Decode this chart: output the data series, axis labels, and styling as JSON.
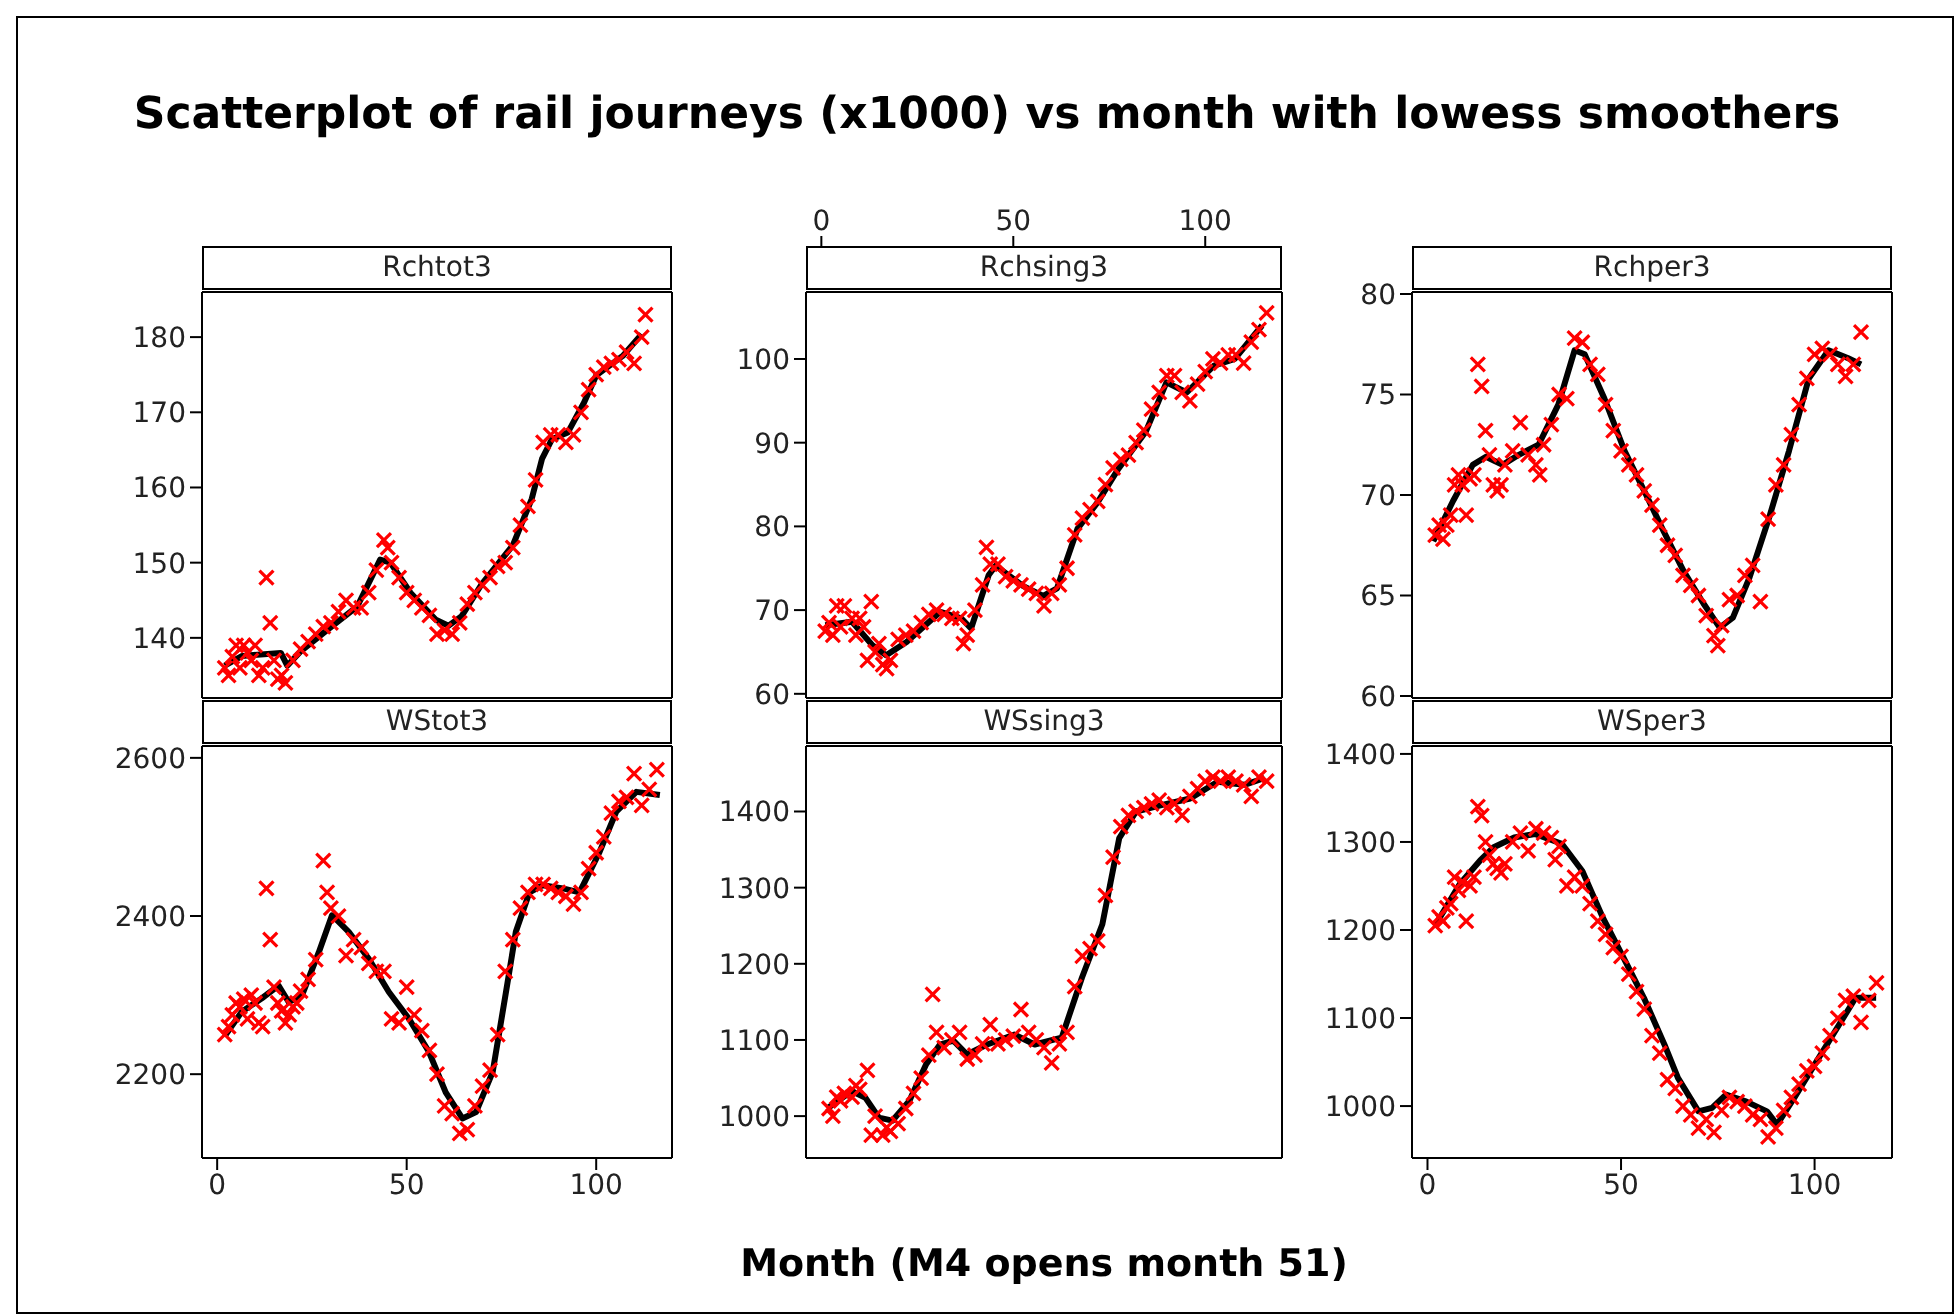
{
  "chart_data": [
    {
      "type": "scatter",
      "title": "Rchtot3",
      "annotations": [
        "Scatterplot of rail journeys (x1000) vs month with lowess smoothers"
      ],
      "xlim": [
        -4,
        120
      ],
      "ylim": [
        132,
        186
      ],
      "yticks": [
        140,
        150,
        160,
        170,
        180
      ],
      "tick_labels": "y",
      "legend": false,
      "grid": false,
      "series": [
        {
          "type": "scatter",
          "color": "#ff0000",
          "marker": "cross",
          "x": [
            2,
            3,
            4,
            5,
            6,
            7,
            8,
            9,
            10,
            11,
            12,
            13,
            14,
            15,
            16,
            17,
            18,
            20,
            22,
            24,
            26,
            28,
            30,
            32,
            34,
            36,
            38,
            40,
            42,
            44,
            45,
            46,
            48,
            50,
            52,
            54,
            56,
            58,
            60,
            62,
            64,
            66,
            68,
            70,
            72,
            74,
            76,
            78,
            80,
            82,
            84,
            86,
            88,
            90,
            92,
            94,
            96,
            98,
            100,
            102,
            104,
            106,
            108,
            110,
            112,
            113
          ],
          "values": [
            136,
            135,
            137.5,
            139,
            136,
            139,
            138,
            137,
            139,
            135,
            136,
            148,
            142,
            137,
            134.5,
            135,
            134,
            137,
            138.5,
            139.5,
            140.5,
            141.5,
            142,
            143.5,
            145,
            144,
            144,
            146,
            149,
            153,
            152,
            150,
            148,
            146,
            145,
            144,
            143,
            140.5,
            141,
            140.5,
            142,
            144.5,
            146,
            147,
            148,
            149.5,
            150,
            152,
            155,
            157.5,
            161,
            166,
            167,
            167,
            166,
            167,
            170,
            173,
            175,
            176,
            176.5,
            177,
            178,
            176.5,
            180,
            183
          ]
        },
        {
          "type": "line",
          "color": "#000000",
          "x": [
            2,
            6.6,
            16.8,
            18.5,
            22,
            30.4,
            37,
            43,
            45.7,
            51,
            57.7,
            61,
            64.5,
            69.6,
            78,
            83,
            85.7,
            88.3,
            92.5,
            96.8,
            100,
            107,
            112
          ],
          "values": [
            136.3,
            137.6,
            138,
            136.3,
            138.2,
            141.6,
            144.2,
            150.4,
            150,
            146,
            142.4,
            141.6,
            142.9,
            147,
            152.3,
            158.5,
            163.8,
            166.4,
            167.3,
            171.3,
            174.9,
            177.5,
            180.4
          ]
        }
      ]
    },
    {
      "type": "scatter",
      "title": "Rchsing3",
      "xlim": [
        -4,
        120
      ],
      "x2lim": [
        -4,
        120
      ],
      "x2ticks": [
        0,
        50,
        100
      ],
      "ylim": [
        59.5,
        108
      ],
      "yticks": [
        60,
        70,
        80,
        90,
        100
      ],
      "legend": false,
      "grid": false,
      "series": [
        {
          "type": "scatter",
          "color": "#ff0000",
          "marker": "cross",
          "x": [
            1,
            2,
            3,
            4,
            5,
            6,
            8,
            9,
            10,
            11,
            12,
            13,
            14,
            15,
            16,
            17,
            18,
            20,
            22,
            24,
            26,
            28,
            30,
            32,
            34,
            36,
            37,
            38,
            40,
            42,
            43,
            44,
            46,
            48,
            50,
            52,
            54,
            56,
            58,
            60,
            62,
            64,
            66,
            68,
            70,
            72,
            74,
            76,
            78,
            80,
            82,
            84,
            86,
            88,
            90,
            92,
            94,
            96,
            98,
            100,
            102,
            104,
            106,
            108,
            110,
            112,
            114,
            116
          ],
          "values": [
            67.5,
            68.5,
            67,
            70.5,
            68,
            70.5,
            69,
            67,
            69,
            68,
            64,
            71,
            65,
            66,
            63.5,
            63,
            64,
            66.5,
            67,
            67.5,
            68.5,
            69.5,
            70,
            69.5,
            69,
            69,
            66,
            67,
            70,
            73,
            77.5,
            75.5,
            75.5,
            74,
            73.5,
            73,
            72.5,
            72,
            70.5,
            72,
            73,
            75,
            79,
            81,
            82,
            83,
            85,
            87,
            88,
            88.5,
            90,
            91.5,
            94,
            96,
            98,
            98,
            96,
            95,
            97,
            98.5,
            100,
            99.5,
            100.5,
            100.5,
            99.5,
            102,
            103.5,
            105.5
          ]
        },
        {
          "type": "line",
          "color": "#000000",
          "x": [
            1,
            8,
            13.3,
            16.9,
            22.2,
            31,
            36.5,
            39,
            43.6,
            45.4,
            52.5,
            57.8,
            61.4,
            66.7,
            72,
            77.4,
            84.5,
            89.9,
            95.2,
            102.3,
            107.7,
            114.8
          ],
          "values": [
            68.2,
            68.6,
            65.8,
            64.6,
            66.2,
            69.8,
            69,
            67.8,
            74.2,
            75.3,
            72.9,
            71.7,
            72.6,
            79.7,
            82.9,
            86.9,
            91.3,
            97.2,
            96,
            99.2,
            100,
            104
          ]
        }
      ]
    },
    {
      "type": "scatter",
      "title": "Rchper3",
      "xlim": [
        -4,
        120
      ],
      "ylim": [
        59.9,
        80.1
      ],
      "yticks": [
        60,
        65,
        70,
        75,
        80
      ],
      "tick_labels": "y",
      "legend": false,
      "grid": false,
      "series": [
        {
          "type": "scatter",
          "color": "#ff0000",
          "marker": "cross",
          "x": [
            2,
            3,
            4,
            5,
            6,
            7,
            8,
            9,
            10,
            11,
            12,
            13,
            14,
            15,
            16,
            17,
            18,
            19,
            20,
            22,
            24,
            26,
            28,
            29,
            30,
            32,
            34,
            36,
            38,
            40,
            42,
            44,
            46,
            48,
            50,
            52,
            54,
            56,
            58,
            60,
            62,
            64,
            66,
            68,
            70,
            72,
            74,
            75,
            76,
            78,
            80,
            82,
            84,
            86,
            88,
            90,
            92,
            94,
            96,
            98,
            100,
            102,
            104,
            106,
            108,
            110,
            112
          ],
          "values": [
            68,
            68.5,
            67.8,
            68.5,
            69,
            70.5,
            71,
            70.5,
            69,
            70.8,
            71,
            76.5,
            75.4,
            73.2,
            72,
            70.5,
            70.2,
            70.5,
            71.5,
            72.2,
            73.6,
            72,
            71.5,
            71,
            72.5,
            73.5,
            75,
            74.8,
            77.8,
            77.6,
            76.5,
            76,
            74.5,
            73.2,
            72.2,
            71.5,
            71,
            70.2,
            69.5,
            68.5,
            67.5,
            67,
            66,
            65.5,
            65,
            64,
            63,
            62.5,
            63.5,
            64.8,
            65,
            66,
            66.5,
            64.7,
            68.8,
            70.5,
            71.5,
            73,
            74.5,
            75.8,
            77,
            77.3,
            77,
            76.5,
            75.9,
            76.5,
            78.1
          ]
        },
        {
          "type": "line",
          "color": "#000000",
          "x": [
            1.5,
            6.6,
            11.7,
            15.1,
            19.4,
            23.6,
            28.7,
            33.8,
            38,
            40.6,
            45.7,
            50.9,
            56,
            61,
            66.2,
            71.3,
            75.5,
            78.9,
            83.2,
            88.3,
            93.4,
            98.5,
            103.6,
            108.7,
            112
          ],
          "values": [
            67.7,
            69.7,
            71.5,
            71.9,
            71.5,
            72,
            72.5,
            74.5,
            77.2,
            77,
            74.8,
            72.2,
            70.2,
            68.2,
            66.2,
            64.6,
            63.4,
            63.9,
            65.9,
            68.9,
            72.2,
            75.8,
            77.2,
            76.8,
            76.5
          ]
        }
      ]
    },
    {
      "type": "scatter",
      "title": "WStot3",
      "xlim": [
        -4,
        120
      ],
      "xticks": [
        0,
        50,
        100
      ],
      "ylim": [
        2094,
        2615
      ],
      "yticks": [
        2200,
        2400,
        2600
      ],
      "legend": false,
      "grid": false,
      "series": [
        {
          "type": "scatter",
          "color": "#ff0000",
          "marker": "cross",
          "x": [
            2,
            3,
            4,
            5,
            6,
            7,
            8,
            9,
            10,
            11,
            12,
            13,
            14,
            15,
            16,
            17,
            18,
            19,
            20,
            21,
            22,
            24,
            26,
            28,
            29,
            30,
            32,
            34,
            36,
            38,
            40,
            42,
            44,
            46,
            48,
            50,
            52,
            54,
            56,
            58,
            60,
            62,
            64,
            66,
            68,
            70,
            72,
            74,
            76,
            78,
            80,
            82,
            84,
            86,
            88,
            90,
            92,
            94,
            96,
            98,
            100,
            102,
            104,
            106,
            108,
            110,
            112,
            114,
            116
          ],
          "values": [
            2250,
            2260,
            2275,
            2290,
            2285,
            2295,
            2270,
            2300,
            2290,
            2265,
            2260,
            2435,
            2370,
            2310,
            2290,
            2280,
            2265,
            2275,
            2285,
            2290,
            2305,
            2320,
            2345,
            2470,
            2430,
            2410,
            2400,
            2350,
            2370,
            2360,
            2340,
            2330,
            2330,
            2270,
            2265,
            2310,
            2275,
            2255,
            2230,
            2200,
            2160,
            2150,
            2125,
            2130,
            2160,
            2185,
            2205,
            2250,
            2330,
            2370,
            2410,
            2430,
            2440,
            2440,
            2435,
            2430,
            2425,
            2415,
            2430,
            2460,
            2480,
            2500,
            2530,
            2545,
            2550,
            2580,
            2540,
            2560,
            2585
          ]
        },
        {
          "type": "line",
          "color": "#000000",
          "x": [
            2.1,
            6.5,
            11.8,
            16.2,
            18.9,
            22.4,
            26.8,
            30.3,
            34.7,
            40,
            45.3,
            50.6,
            55.9,
            60.3,
            64.7,
            68.3,
            72.7,
            76.2,
            78.8,
            82.4,
            85.9,
            91.2,
            95.6,
            100.9,
            105.3,
            110.6,
            116.8
          ],
          "values": [
            2249,
            2279,
            2296,
            2312,
            2291,
            2300,
            2354,
            2401,
            2380,
            2346,
            2304,
            2270,
            2228,
            2177,
            2144,
            2152,
            2203,
            2304,
            2380,
            2430,
            2439,
            2435,
            2430,
            2481,
            2532,
            2557,
            2553
          ]
        }
      ]
    },
    {
      "type": "scatter",
      "title": "WSsing3",
      "xlabel": "Month (M4 opens month 51)",
      "xlim": [
        -4,
        120
      ],
      "ylim": [
        945,
        1486
      ],
      "yticks": [
        1000,
        1100,
        1200,
        1300,
        1400
      ],
      "tick_labels": "y",
      "legend": false,
      "grid": false,
      "series": [
        {
          "type": "scatter",
          "color": "#ff0000",
          "marker": "cross",
          "x": [
            2,
            3,
            4,
            5,
            6,
            8,
            9,
            10,
            12,
            13,
            14,
            16,
            17,
            18,
            20,
            22,
            24,
            26,
            28,
            29,
            30,
            32,
            34,
            36,
            38,
            40,
            42,
            44,
            46,
            48,
            50,
            52,
            54,
            56,
            58,
            60,
            62,
            64,
            66,
            68,
            70,
            72,
            74,
            76,
            78,
            80,
            82,
            84,
            86,
            88,
            90,
            92,
            94,
            96,
            98,
            100,
            102,
            104,
            106,
            108,
            110,
            112,
            114,
            116
          ],
          "values": [
            1010,
            1000,
            1025,
            1020,
            1030,
            1025,
            1040,
            1035,
            1060,
            975,
            1000,
            975,
            985,
            980,
            990,
            1010,
            1030,
            1050,
            1080,
            1160,
            1110,
            1090,
            1100,
            1110,
            1075,
            1080,
            1095,
            1120,
            1095,
            1100,
            1105,
            1140,
            1110,
            1100,
            1090,
            1070,
            1095,
            1110,
            1170,
            1210,
            1220,
            1230,
            1290,
            1340,
            1380,
            1395,
            1400,
            1405,
            1410,
            1415,
            1405,
            1410,
            1395,
            1420,
            1430,
            1440,
            1445,
            1440,
            1445,
            1440,
            1435,
            1420,
            1445,
            1440
          ]
        },
        {
          "type": "line",
          "color": "#000000",
          "x": [
            1.8,
            7.9,
            11.5,
            15,
            18.5,
            22.9,
            27.3,
            30.9,
            34.4,
            37.9,
            43.2,
            50.3,
            55.6,
            62.6,
            67.9,
            73.2,
            77.6,
            82,
            89.1,
            96.1,
            103.2,
            110.2,
            115.5
          ],
          "values": [
            1011,
            1033,
            1024,
            998,
            994,
            1020,
            1068,
            1094,
            1099,
            1081,
            1094,
            1107,
            1094,
            1103,
            1182,
            1252,
            1365,
            1400,
            1409,
            1417,
            1439,
            1435,
            1444
          ]
        }
      ]
    },
    {
      "type": "scatter",
      "title": "WSper3",
      "xlim": [
        -4,
        120
      ],
      "xticks": [
        0,
        50,
        100
      ],
      "ylim": [
        941,
        1409
      ],
      "yticks": [
        1000,
        1100,
        1200,
        1300,
        1400
      ],
      "legend": false,
      "grid": false,
      "series": [
        {
          "type": "scatter",
          "color": "#ff0000",
          "marker": "cross",
          "x": [
            2,
            3,
            4,
            5,
            6,
            7,
            8,
            9,
            10,
            11,
            12,
            13,
            14,
            15,
            16,
            17,
            18,
            19,
            20,
            22,
            24,
            26,
            28,
            30,
            32,
            33,
            34,
            36,
            38,
            40,
            42,
            44,
            46,
            48,
            50,
            52,
            54,
            56,
            58,
            60,
            62,
            64,
            66,
            68,
            70,
            72,
            74,
            76,
            78,
            80,
            82,
            84,
            86,
            88,
            90,
            92,
            94,
            96,
            98,
            100,
            102,
            104,
            106,
            108,
            110,
            112,
            114,
            116
          ],
          "values": [
            1205,
            1215,
            1210,
            1225,
            1230,
            1260,
            1245,
            1255,
            1210,
            1250,
            1260,
            1340,
            1330,
            1300,
            1285,
            1275,
            1270,
            1265,
            1275,
            1300,
            1310,
            1290,
            1315,
            1310,
            1305,
            1280,
            1295,
            1250,
            1260,
            1250,
            1230,
            1210,
            1195,
            1180,
            1170,
            1150,
            1130,
            1110,
            1080,
            1060,
            1030,
            1020,
            1000,
            990,
            975,
            985,
            970,
            995,
            1010,
            1005,
            1000,
            990,
            985,
            965,
            975,
            995,
            1010,
            1025,
            1040,
            1045,
            1060,
            1080,
            1100,
            1120,
            1125,
            1095,
            1120,
            1140
          ]
        },
        {
          "type": "line",
          "color": "#000000",
          "x": [
            2.1,
            8.3,
            13.6,
            17.1,
            22.4,
            27.7,
            34.7,
            40,
            45.3,
            50.6,
            55.9,
            61.2,
            64.7,
            70,
            73.5,
            77.1,
            82.4,
            87.7,
            90.3,
            94.7,
            100,
            105.3,
            110.6,
            115.9
          ],
          "values": [
            1206,
            1252,
            1279,
            1294,
            1305,
            1309,
            1298,
            1267,
            1214,
            1169,
            1123,
            1070,
            1032,
            994,
            998,
            1013,
            1005,
            994,
            979,
            1009,
            1047,
            1085,
            1123,
            1123
          ]
        }
      ]
    }
  ]
}
